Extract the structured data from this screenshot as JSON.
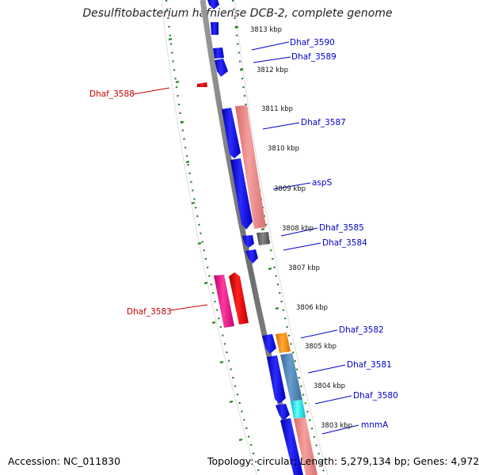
{
  "title": "Desulfitobacterium hafniense DCB-2, complete genome",
  "accession": "Accession: NC_011830",
  "summary": "Topology: circular; Length: 5,279,134 bp; Genes: 4,972",
  "ticks": [
    {
      "label": "3813 kbp"
    },
    {
      "label": "3812 kbp"
    },
    {
      "label": "3811 kbp"
    },
    {
      "label": "3810 kbp"
    },
    {
      "label": "3809 kbp"
    },
    {
      "label": "3808 kbp"
    },
    {
      "label": "3807 kbp"
    },
    {
      "label": "3806 kbp"
    },
    {
      "label": "3805 kbp"
    },
    {
      "label": "3804 kbp"
    },
    {
      "label": "3803 kbp"
    }
  ],
  "gene_labels": [
    {
      "name": "Dhaf_3590",
      "color": "#0000cc"
    },
    {
      "name": "Dhaf_3589",
      "color": "#0000cc"
    },
    {
      "name": "Dhaf_3588",
      "color": "#cc0000"
    },
    {
      "name": "Dhaf_3587",
      "color": "#0000cc"
    },
    {
      "name": "aspS",
      "color": "#0000cc"
    },
    {
      "name": "Dhaf_3585",
      "color": "#0000cc"
    },
    {
      "name": "Dhaf_3584",
      "color": "#0000cc"
    },
    {
      "name": "Dhaf_3583",
      "color": "#cc0000"
    },
    {
      "name": "Dhaf_3582",
      "color": "#0000cc"
    },
    {
      "name": "Dhaf_3581",
      "color": "#0000cc"
    },
    {
      "name": "Dhaf_3580",
      "color": "#0000cc"
    },
    {
      "name": "mnmA",
      "color": "#0000cc"
    }
  ],
  "colors": {
    "backbone": "#808080",
    "forward_strand": "#0000ee",
    "reverse_strand": "#ee0000",
    "rna_pink": "#ee8888",
    "guide_dots": "#228822",
    "orange": "#ff8800",
    "steel": "#4a7fb0",
    "cyan": "#00dddd",
    "magenta": "#ee1188",
    "gray": "#666666"
  }
}
